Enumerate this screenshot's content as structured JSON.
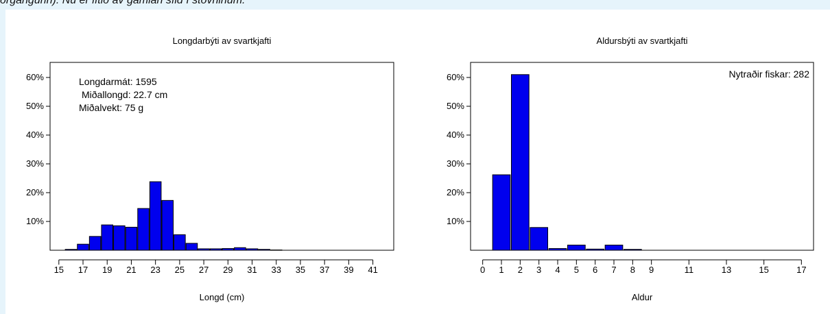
{
  "page": {
    "caption": "ðrgangurin). Nú er lítið av gamlan síld í stovninum.",
    "background": "#e6f4fb",
    "bar_color": "#0000ee"
  },
  "chart_data": [
    {
      "type": "bar",
      "title": "Longdarbýti av svartkjafti",
      "xlabel": "Longd (cm)",
      "ylabel": "",
      "ylim": [
        0,
        70
      ],
      "yticks": [
        10,
        20,
        30,
        40,
        50,
        60
      ],
      "ytick_labels": [
        "10%",
        "20%",
        "30%",
        "40%",
        "50%",
        "60%"
      ],
      "xticks": [
        15,
        17,
        19,
        21,
        23,
        25,
        27,
        29,
        31,
        33,
        35,
        37,
        39,
        41
      ],
      "xlim": [
        14.5,
        42.5
      ],
      "categories": [
        16,
        17,
        18,
        19,
        20,
        21,
        22,
        23,
        24,
        25,
        26,
        27,
        28,
        29,
        30,
        31,
        32,
        33
      ],
      "values": [
        0.3,
        2.1,
        4.8,
        8.8,
        8.5,
        8.0,
        14.5,
        23.8,
        17.3,
        5.4,
        2.4,
        0.5,
        0.5,
        0.6,
        0.9,
        0.5,
        0.3,
        0.1
      ],
      "annotations": [
        "Longdarmát: 1595",
        "Miðallongd: 22.7 cm",
        "Miðalvekt: 75 g"
      ],
      "grid": false
    },
    {
      "type": "bar",
      "title": "Aldursbýti av svartkjafti",
      "xlabel": "Aldur",
      "ylabel": "",
      "ylim": [
        0,
        70
      ],
      "yticks": [
        10,
        20,
        30,
        40,
        50,
        60
      ],
      "ytick_labels": [
        "10%",
        "20%",
        "30%",
        "40%",
        "50%",
        "60%"
      ],
      "xticks": [
        0,
        1,
        2,
        3,
        4,
        5,
        6,
        7,
        8,
        9,
        11,
        13,
        15,
        17
      ],
      "xlim": [
        -0.5,
        17.5
      ],
      "categories": [
        1,
        2,
        3,
        4,
        5,
        6,
        7,
        8
      ],
      "values": [
        26.2,
        61.0,
        7.9,
        0.6,
        1.8,
        0.4,
        1.8,
        0.3
      ],
      "annotations": [
        "Nytraðir fiskar: 282"
      ],
      "grid": false
    }
  ]
}
